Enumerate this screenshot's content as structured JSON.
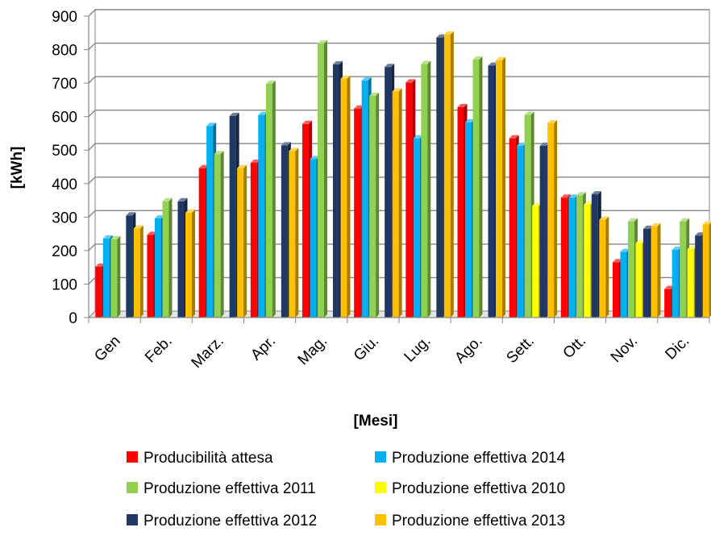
{
  "chart_data": {
    "type": "bar",
    "title": "",
    "xlabel": "[Mesi]",
    "ylabel": "[kWh]",
    "ylim": [
      0,
      900
    ],
    "yticks": [
      0,
      100,
      200,
      300,
      400,
      500,
      600,
      700,
      800,
      900
    ],
    "grid": true,
    "legend_position": "bottom",
    "categories": [
      "Gen",
      "Feb.",
      "Marz.",
      "Apr.",
      "Mag.",
      "Giu.",
      "Lug.",
      "Ago.",
      "Sett.",
      "Ott.",
      "Nov.",
      "Dic."
    ],
    "series": [
      {
        "name": "Producibilità attesa",
        "color": "#ff0000",
        "values": [
          152,
          247,
          446,
          462,
          578,
          624,
          702,
          628,
          535,
          358,
          165,
          85
        ]
      },
      {
        "name": "Produzione effettiva 2014",
        "color": "#00b0f0",
        "values": [
          236,
          296,
          572,
          605,
          473,
          708,
          535,
          583,
          513,
          358,
          196,
          202
        ]
      },
      {
        "name": "Produzione effettiva 2011",
        "color": "#92d050",
        "values": [
          234,
          347,
          488,
          698,
          818,
          662,
          757,
          770,
          605,
          365,
          287,
          287
        ]
      },
      {
        "name": "Produzione effettiva 2010",
        "color": "#ffff00",
        "values": [
          0,
          0,
          0,
          0,
          0,
          0,
          0,
          0,
          333,
          337,
          222,
          204
        ]
      },
      {
        "name": "Produzione effettiva 2012",
        "color": "#1f3864",
        "values": [
          305,
          347,
          602,
          514,
          756,
          748,
          836,
          752,
          513,
          368,
          265,
          245
        ]
      },
      {
        "name": "Produzione effettiva 2013",
        "color": "#ffc000",
        "values": [
          266,
          313,
          446,
          497,
          713,
          675,
          845,
          768,
          580,
          292,
          272,
          278
        ]
      }
    ]
  }
}
